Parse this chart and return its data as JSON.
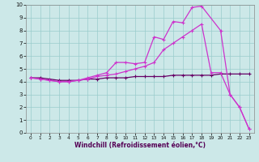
{
  "xlabel": "Windchill (Refroidissement éolien,°C)",
  "bg_color": "#cce8e8",
  "grid_color": "#99cccc",
  "line_color": "#cc33cc",
  "line_color2": "#660066",
  "xlim": [
    -0.5,
    23.5
  ],
  "ylim": [
    0,
    10
  ],
  "xticks": [
    0,
    1,
    2,
    3,
    4,
    5,
    6,
    7,
    8,
    9,
    10,
    11,
    12,
    13,
    14,
    15,
    16,
    17,
    18,
    19,
    20,
    21,
    22,
    23
  ],
  "yticks": [
    0,
    1,
    2,
    3,
    4,
    5,
    6,
    7,
    8,
    9,
    10
  ],
  "line1_x": [
    0,
    1,
    2,
    3,
    4,
    5,
    6,
    7,
    8,
    9,
    10,
    11,
    12,
    13,
    14,
    15,
    16,
    17,
    18,
    20,
    21,
    22,
    23
  ],
  "line1_y": [
    4.3,
    4.2,
    4.1,
    4.0,
    4.0,
    4.1,
    4.3,
    4.5,
    4.7,
    5.5,
    5.5,
    5.4,
    5.5,
    7.5,
    7.3,
    8.7,
    8.6,
    9.8,
    9.9,
    8.0,
    3.0,
    2.0,
    0.3
  ],
  "line2_x": [
    0,
    1,
    2,
    3,
    4,
    5,
    6,
    7,
    8,
    9,
    10,
    11,
    12,
    13,
    14,
    15,
    16,
    17,
    18,
    19,
    20,
    21,
    22,
    23
  ],
  "line2_y": [
    4.3,
    4.2,
    4.1,
    4.0,
    4.0,
    4.1,
    4.2,
    4.4,
    4.5,
    4.6,
    4.8,
    5.0,
    5.2,
    5.5,
    6.5,
    7.0,
    7.5,
    8.0,
    8.5,
    4.7,
    4.7,
    3.0,
    2.0,
    0.3
  ],
  "line3_x": [
    0,
    1,
    2,
    3,
    4,
    5,
    6,
    7,
    8,
    9,
    10,
    11,
    12,
    13,
    14,
    15,
    16,
    17,
    18,
    19,
    20,
    21,
    22,
    23
  ],
  "line3_y": [
    4.3,
    4.3,
    4.2,
    4.1,
    4.1,
    4.1,
    4.2,
    4.2,
    4.3,
    4.3,
    4.3,
    4.4,
    4.4,
    4.4,
    4.4,
    4.5,
    4.5,
    4.5,
    4.5,
    4.5,
    4.6,
    4.6,
    4.6,
    4.6
  ]
}
